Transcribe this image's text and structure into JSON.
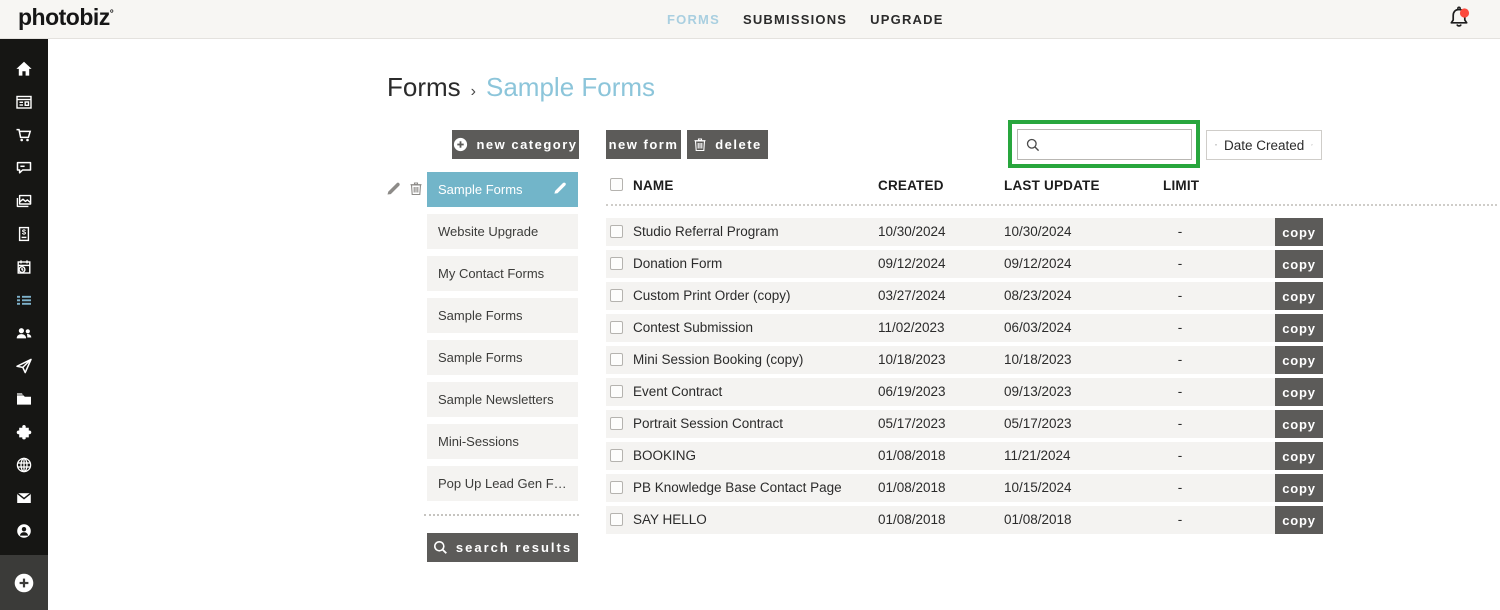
{
  "topbar": {
    "logo": "photobiz",
    "logo_mark": "°",
    "nav": [
      {
        "label": "FORMS",
        "active": true
      },
      {
        "label": "SUBMISSIONS",
        "active": false
      },
      {
        "label": "UPGRADE",
        "active": false
      }
    ]
  },
  "sidebar": {
    "icons": [
      {
        "name": "home-icon",
        "active": false
      },
      {
        "name": "site-pages-icon",
        "active": false
      },
      {
        "name": "cart-icon",
        "active": false
      },
      {
        "name": "chat-icon",
        "active": false
      },
      {
        "name": "gallery-icon",
        "active": false
      },
      {
        "name": "invoice-icon",
        "active": false
      },
      {
        "name": "scheduler-icon",
        "active": false
      },
      {
        "name": "forms-icon",
        "active": true
      },
      {
        "name": "contacts-icon",
        "active": false
      },
      {
        "name": "marketing-icon",
        "active": false
      },
      {
        "name": "files-icon",
        "active": false
      },
      {
        "name": "integrations-icon",
        "active": false
      },
      {
        "name": "domains-icon",
        "active": false
      },
      {
        "name": "email-icon",
        "active": false
      },
      {
        "name": "account-icon",
        "active": false
      }
    ],
    "bottom_icon": "add-icon"
  },
  "breadcrumb": {
    "root": "Forms",
    "separator": "›",
    "current": "Sample Forms"
  },
  "left_panel": {
    "new_category_label": "new category",
    "categories": [
      {
        "label": "Sample Forms",
        "selected": true
      },
      {
        "label": "Website Upgrade",
        "selected": false
      },
      {
        "label": "My Contact Forms",
        "selected": false
      },
      {
        "label": "Sample Forms",
        "selected": false
      },
      {
        "label": "Sample Forms",
        "selected": false
      },
      {
        "label": "Sample Newsletters",
        "selected": false
      },
      {
        "label": "Mini-Sessions",
        "selected": false
      },
      {
        "label": "Pop Up Lead Gen For…",
        "selected": false
      }
    ],
    "search_results_label": "search results"
  },
  "toolbar": {
    "new_form_label": "new form",
    "delete_label": "delete",
    "search_value": "",
    "sort_label": "Date Created"
  },
  "table": {
    "headers": {
      "name": "NAME",
      "created": "CREATED",
      "last_update": "LAST UPDATE",
      "limit": "LIMIT"
    },
    "copy_label": "copy",
    "rows": [
      {
        "name": "Studio Referral Program",
        "created": "10/30/2024",
        "last_update": "10/30/2024",
        "limit": "-"
      },
      {
        "name": "Donation Form",
        "created": "09/12/2024",
        "last_update": "09/12/2024",
        "limit": "-"
      },
      {
        "name": "Custom Print Order (copy)",
        "created": "03/27/2024",
        "last_update": "08/23/2024",
        "limit": "-"
      },
      {
        "name": "Contest Submission",
        "created": "11/02/2023",
        "last_update": "06/03/2024",
        "limit": "-"
      },
      {
        "name": "Mini Session Booking (copy)",
        "created": "10/18/2023",
        "last_update": "10/18/2023",
        "limit": "-"
      },
      {
        "name": "Event Contract",
        "created": "06/19/2023",
        "last_update": "09/13/2023",
        "limit": "-"
      },
      {
        "name": "Portrait Session Contract",
        "created": "05/17/2023",
        "last_update": "05/17/2023",
        "limit": "-"
      },
      {
        "name": "BOOKING",
        "created": "01/08/2018",
        "last_update": "11/21/2024",
        "limit": "-"
      },
      {
        "name": "PB Knowledge Base Contact Page",
        "created": "01/08/2018",
        "last_update": "10/15/2024",
        "limit": "-"
      },
      {
        "name": "SAY HELLO",
        "created": "01/08/2018",
        "last_update": "01/08/2018",
        "limit": "-"
      }
    ]
  },
  "colors": {
    "accent_teal": "#72b5c9",
    "highlight_green": "#28a63d",
    "notification_red": "#fc4a3d",
    "active_nav_blue": "#a9cfe0",
    "button_gray": "#5c5b59"
  }
}
